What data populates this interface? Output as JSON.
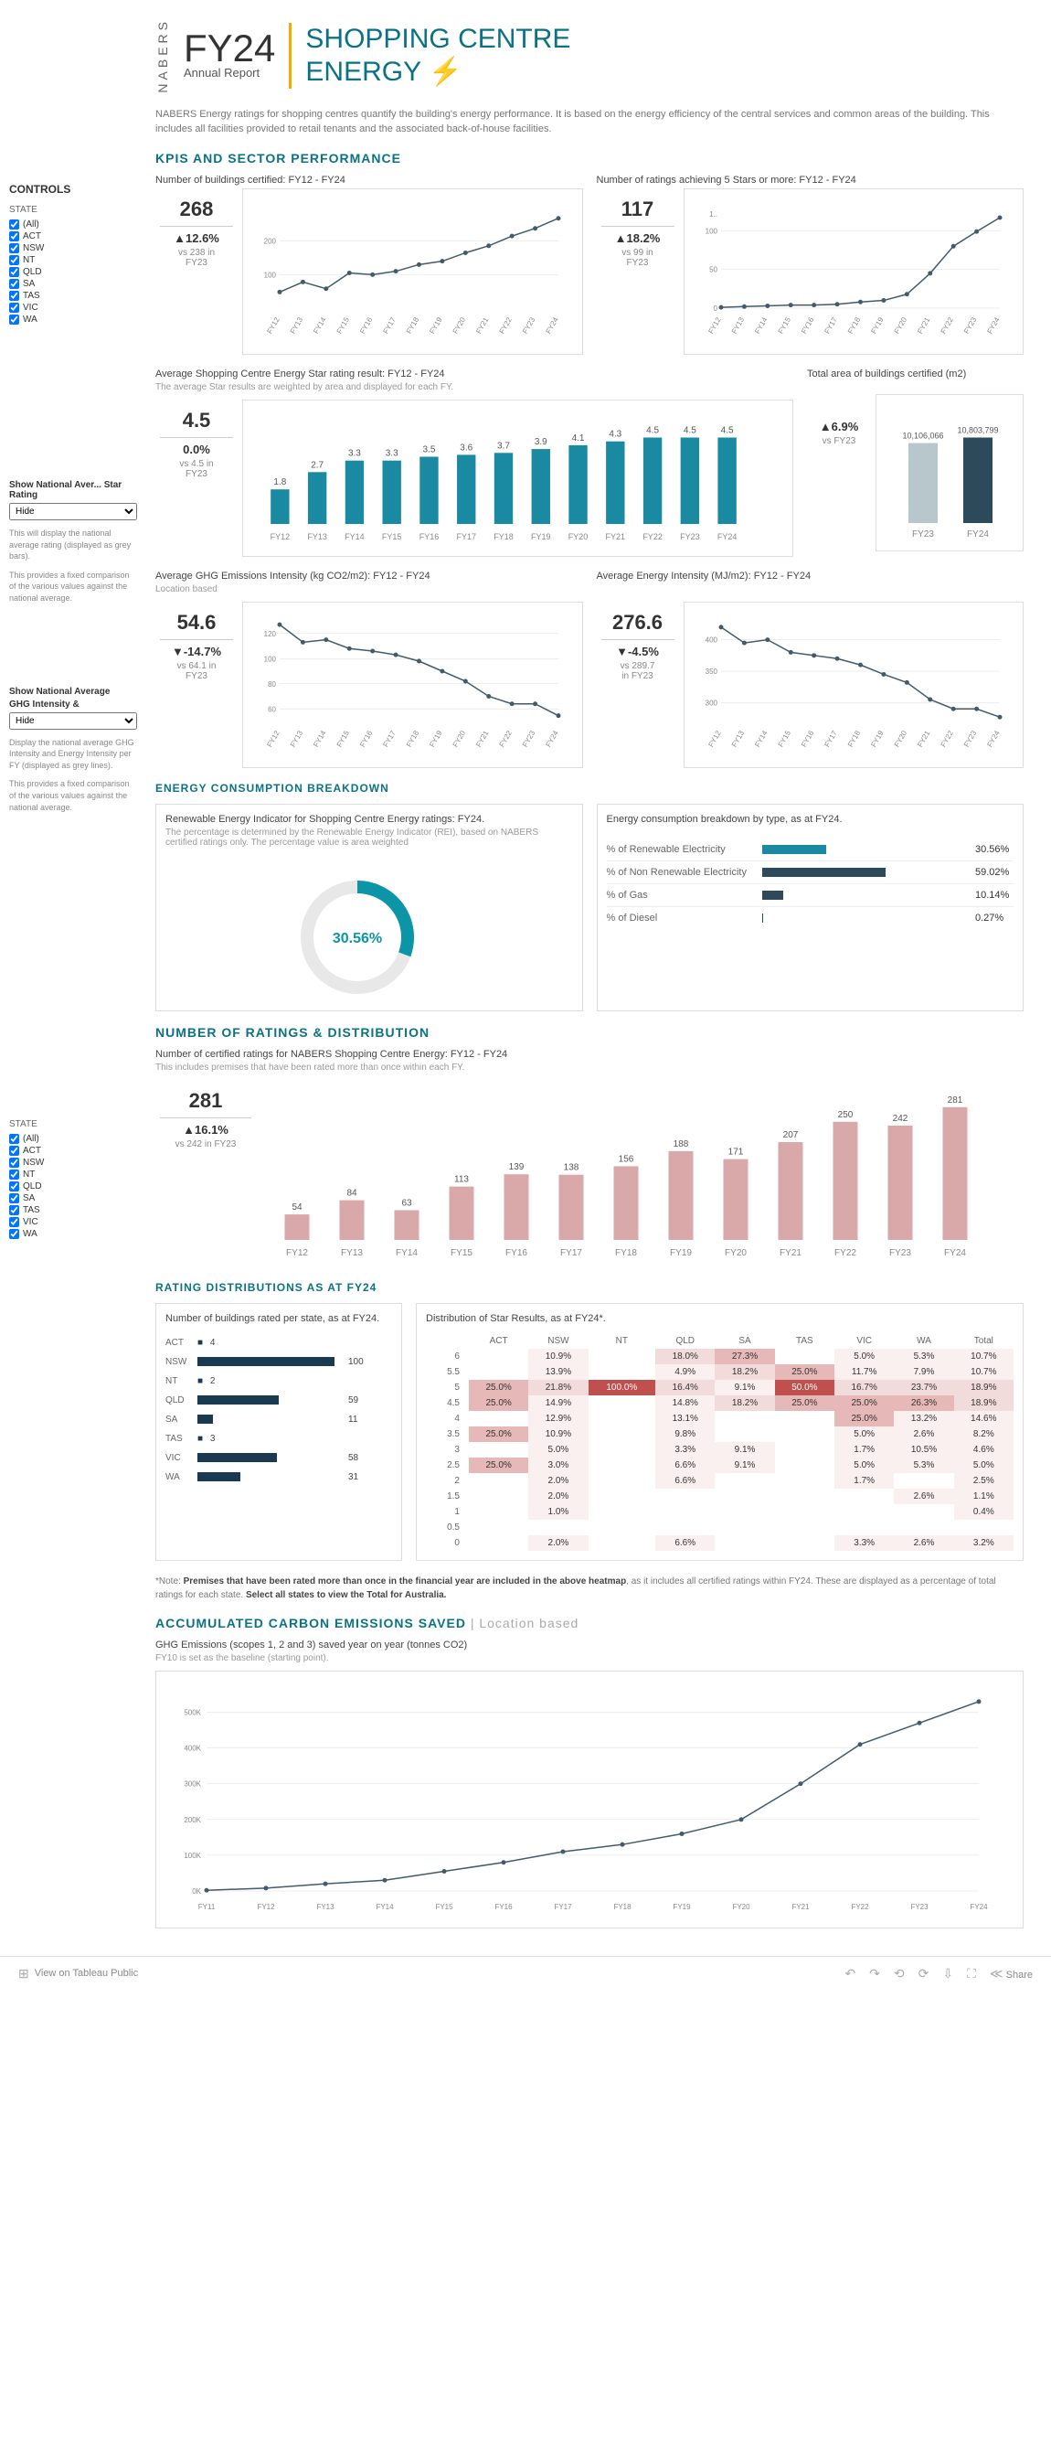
{
  "header": {
    "nabers": "NABERS",
    "fy": "FY24",
    "annual": "Annual Report",
    "title1": "SHOPPING CENTRE",
    "title2": "ENERGY",
    "bolt": "⚡",
    "desc": "NABERS Energy ratings for shopping centres quantify the building's energy performance. It is based on the energy efficiency of the central services and common areas of the building. This includes all facilities provided to retail tenants and the associated back-of-house facilities."
  },
  "sections": {
    "kpis": "KPIS AND SECTOR PERFORMANCE",
    "energy": "ENERGY CONSUMPTION BREAKDOWN",
    "ratings": "NUMBER OF RATINGS & DISTRIBUTION",
    "dist": "RATING DISTRIBUTIONS AS AT FY24",
    "carbon": "ACCUMULATED CARBON EMISSIONS SAVED",
    "carbon_sub": "Location based"
  },
  "controls": {
    "header": "CONTROLS",
    "state_label": "STATE",
    "states": [
      "(All)",
      "ACT",
      "NSW",
      "NT",
      "QLD",
      "SA",
      "TAS",
      "VIC",
      "WA"
    ],
    "block1": {
      "label": "Show National Aver... Star Rating",
      "selected": "Hide",
      "note1": "This will display the national average rating (displayed as grey bars).",
      "note2": "This provides a fixed comparison of the various values against the national average."
    },
    "block2": {
      "label_a": "Show National Average",
      "label_b": "GHG Intensity &",
      "selected": "Hide",
      "note1": "Display the national average GHG Intensity and Energy Intensity per FY (displayed as grey lines).",
      "note2": "This provides a fixed comparison of the various values against the national average."
    }
  },
  "fy_labels": [
    "FY12",
    "FY13",
    "FY14",
    "FY15",
    "FY16",
    "FY17",
    "FY18",
    "FY19",
    "FY20",
    "FY21",
    "FY22",
    "FY23",
    "FY24"
  ],
  "charts": {
    "buildings_cert": {
      "title": "Number of buildings certified: FY12 - FY24",
      "kpi_val": "268",
      "kpi_delta": "▲12.6%",
      "kpi_note1": "vs 238 in",
      "kpi_note2": "FY23",
      "y_ticks": [
        100,
        200
      ],
      "y_max": 300,
      "data": [
        48,
        78,
        58,
        105,
        100,
        110,
        130,
        140,
        165,
        186,
        215,
        238,
        268
      ]
    },
    "five_star": {
      "title": "Number of ratings achieving 5 Stars or more: FY12 - FY24",
      "kpi_val": "117",
      "kpi_delta": "▲18.2%",
      "kpi_note1": "vs 99 in",
      "kpi_note2": "FY23",
      "y_ticks": [
        0,
        50,
        100
      ],
      "y_max": 130,
      "data": [
        1,
        2,
        3,
        4,
        4,
        5,
        8,
        10,
        18,
        45,
        80,
        99,
        117
      ]
    },
    "star_rating": {
      "title": "Average Shopping Centre Energy Star rating result: FY12 - FY24",
      "subtitle": "The average Star results are weighted by area and displayed for each FY.",
      "kpi_val": "4.5",
      "kpi_delta": "0.0%",
      "kpi_note1": "vs 4.5 in",
      "kpi_note2": "FY23",
      "y_max": 5,
      "data": [
        1.8,
        2.7,
        3.3,
        3.3,
        3.5,
        3.6,
        3.7,
        3.9,
        4.1,
        4.3,
        4.5,
        4.5,
        4.5
      ],
      "bar_color": "#1a8aa3"
    },
    "total_area": {
      "title": "Total area of buildings certified (m2)",
      "kpi_delta": "▲6.9%",
      "kpi_note1": "vs FY23",
      "labels": [
        "FY23",
        "FY24"
      ],
      "values_text": [
        "10,106,066",
        "10,803,799"
      ],
      "values": [
        10106066,
        10803799
      ],
      "colors": [
        "#b8c7cc",
        "#2d4a5a"
      ]
    },
    "ghg": {
      "title": "Average GHG Emissions Intensity (kg CO2/m2): FY12 - FY24",
      "subtitle": "Location based",
      "kpi_val": "54.6",
      "kpi_delta": "▼-14.7%",
      "kpi_note1": "vs 64.1 in",
      "kpi_note2": "FY23",
      "y_ticks": [
        60,
        80,
        100,
        120
      ],
      "y_min": 50,
      "y_max": 130,
      "data": [
        127,
        113,
        115,
        108,
        106,
        103,
        98,
        90,
        82,
        70,
        64,
        64,
        54.6
      ]
    },
    "energy_int": {
      "title": "Average Energy Intensity (MJ/m2): FY12 - FY24",
      "kpi_val": "276.6",
      "kpi_delta": "▼-4.5%",
      "kpi_note1": "vs 289.7",
      "kpi_note2": "in FY23",
      "y_ticks": [
        300,
        350,
        400
      ],
      "y_min": 270,
      "y_max": 430,
      "data": [
        420,
        395,
        400,
        380,
        375,
        370,
        360,
        345,
        332,
        305,
        290,
        290,
        277
      ]
    },
    "renewable": {
      "title": "Renewable Energy Indicator for Shopping Centre Energy ratings: FY24.",
      "subtitle": "The percentage is determined by the Renewable Energy Indicator (REI), based on NABERS certified ratings only. The percentage value is area weighted",
      "pct": "30.56%",
      "donut_color": "#0b95a7"
    },
    "breakdown": {
      "title": "Energy consumption breakdown by type, as at FY24.",
      "rows": [
        {
          "label": "% of Renewable Electricity",
          "pct": "30.56%",
          "val": 30.56,
          "color": "#1a8aa3"
        },
        {
          "label": "% of Non Renewable Electricity",
          "pct": "59.02%",
          "val": 59.02,
          "color": "#2d4a5a"
        },
        {
          "label": "% of Gas",
          "pct": "10.14%",
          "val": 10.14,
          "color": "#2d4a5a"
        },
        {
          "label": "% of Diesel",
          "pct": "0.27%",
          "val": 0.27,
          "color": "#2d4a5a"
        }
      ]
    },
    "cert_ratings": {
      "title": "Number of certified ratings for NABERS Shopping Centre Energy: FY12 - FY24",
      "subtitle": "This includes premises that have been rated more than once within each FY.",
      "kpi_val": "281",
      "kpi_delta": "▲16.1%",
      "kpi_note1": "vs 242 in FY23",
      "y_max": 300,
      "data": [
        54,
        84,
        63,
        113,
        139,
        138,
        156,
        188,
        171,
        207,
        250,
        242,
        281
      ],
      "bar_color": "#d9a8a8"
    },
    "per_state": {
      "title": "Number of buildings rated per state, as at FY24.",
      "rows": [
        {
          "state": "ACT",
          "val": 4,
          "dot": "■"
        },
        {
          "state": "NSW",
          "val": 100
        },
        {
          "state": "NT",
          "val": 2,
          "dot": "■"
        },
        {
          "state": "QLD",
          "val": 59
        },
        {
          "state": "SA",
          "val": 11
        },
        {
          "state": "TAS",
          "val": 3,
          "dot": "■"
        },
        {
          "state": "VIC",
          "val": 58
        },
        {
          "state": "WA",
          "val": 31
        }
      ]
    },
    "heatmap": {
      "title": "Distribution of Star Results, as at FY24*.",
      "cols": [
        "ACT",
        "NSW",
        "NT",
        "QLD",
        "SA",
        "TAS",
        "VIC",
        "WA",
        "Total"
      ],
      "rows": [
        "6",
        "5.5",
        "5",
        "4.5",
        "4",
        "3.5",
        "3",
        "2.5",
        "2",
        "1.5",
        "1",
        "0.5",
        "0"
      ],
      "cells": [
        [
          "",
          "10.9%",
          "",
          "18.0%",
          "27.3%",
          "",
          "5.0%",
          "5.3%",
          "10.7%"
        ],
        [
          "",
          "13.9%",
          "",
          "4.9%",
          "18.2%",
          "25.0%",
          "11.7%",
          "7.9%",
          "10.7%"
        ],
        [
          "25.0%",
          "21.8%",
          "100.0%",
          "16.4%",
          "9.1%",
          "50.0%",
          "16.7%",
          "23.7%",
          "18.9%"
        ],
        [
          "25.0%",
          "14.9%",
          "",
          "14.8%",
          "18.2%",
          "25.0%",
          "25.0%",
          "26.3%",
          "18.9%"
        ],
        [
          "",
          "12.9%",
          "",
          "13.1%",
          "",
          "",
          "25.0%",
          "13.2%",
          "14.6%"
        ],
        [
          "25.0%",
          "10.9%",
          "",
          "9.8%",
          "",
          "",
          "5.0%",
          "2.6%",
          "8.2%"
        ],
        [
          "",
          "5.0%",
          "",
          "3.3%",
          "9.1%",
          "",
          "1.7%",
          "10.5%",
          "4.6%"
        ],
        [
          "25.0%",
          "3.0%",
          "",
          "6.6%",
          "9.1%",
          "",
          "5.0%",
          "5.3%",
          "5.0%"
        ],
        [
          "",
          "2.0%",
          "",
          "6.6%",
          "",
          "",
          "1.7%",
          "",
          "2.5%"
        ],
        [
          "",
          "2.0%",
          "",
          "",
          "",
          "",
          "",
          "2.6%",
          "1.1%"
        ],
        [
          "",
          "1.0%",
          "",
          "",
          "",
          "",
          "",
          "",
          "0.4%"
        ],
        [
          "",
          "",
          "",
          "",
          "",
          "",
          "",
          "",
          ""
        ],
        [
          "",
          "2.0%",
          "",
          "6.6%",
          "",
          "",
          "3.3%",
          "2.6%",
          "3.2%"
        ]
      ]
    },
    "carbon_saved": {
      "title": "GHG Emissions (scopes 1, 2 and 3) saved year on year (tonnes CO2)",
      "subtitle": "FY10 is set as the baseline (starting point).",
      "x_labels": [
        "FY11",
        "FY12",
        "FY13",
        "FY14",
        "FY15",
        "FY16",
        "FY17",
        "FY18",
        "FY19",
        "FY20",
        "FY21",
        "FY22",
        "FY23",
        "FY24"
      ],
      "y_ticks": [
        "0K",
        "100K",
        "200K",
        "300K",
        "400K",
        "500K"
      ],
      "y_max": 550000,
      "data": [
        2000,
        8000,
        20000,
        30000,
        55000,
        80000,
        110000,
        130000,
        160000,
        200000,
        300000,
        410000,
        470000,
        530000
      ]
    }
  },
  "heatmap_note": {
    "prefix": "*Note: ",
    "bold1": "Premises that have been rated more than once in the financial year are included in the above heatmap",
    "mid": ", as it includes all certified ratings within FY24. These are displayed as a percentage of total ratings for each state. ",
    "bold2": "Select all states to view the Total for Australia."
  },
  "footer": {
    "tableau": "View on Tableau Public",
    "share": "Share"
  }
}
